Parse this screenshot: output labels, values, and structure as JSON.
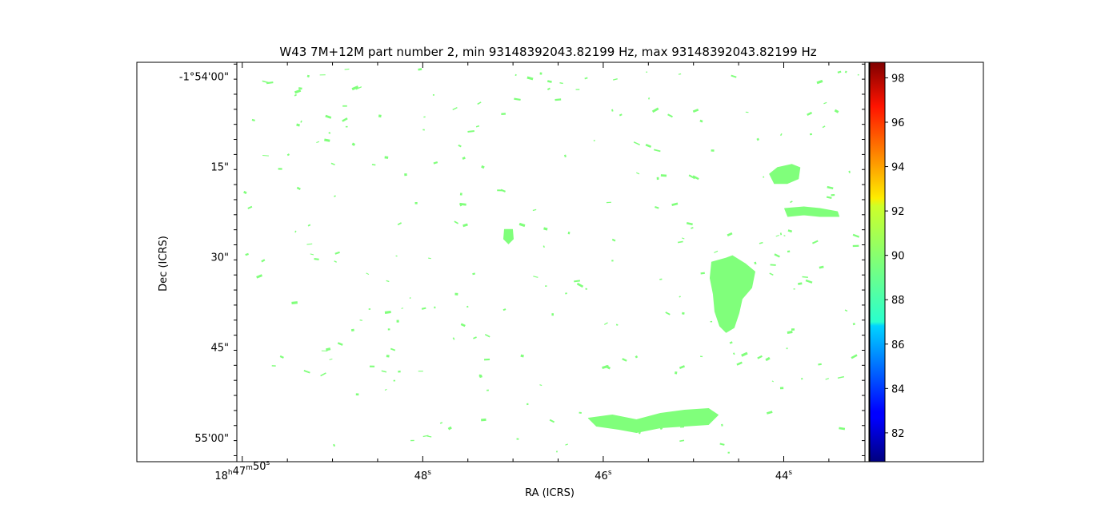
{
  "chart_data": {
    "type": "heatmap",
    "title": "W43 7M+12M part number 2, min 93148392043.82199 Hz, max 93148392043.82199 Hz",
    "xlabel": "RA (ICRS)",
    "ylabel": "Dec (ICRS)",
    "x_ticks": [
      {
        "text": "18h47m50s",
        "ra_s": 50
      },
      {
        "text": "48s",
        "ra_s": 48
      },
      {
        "text": "46s",
        "ra_s": 46
      },
      {
        "text": "44s",
        "ra_s": 44
      }
    ],
    "x_range_s": [
      50.06,
      43.1
    ],
    "y_ticks": [
      {
        "text": "-1°54'00\"",
        "dec_s": 0
      },
      {
        "text": "15\"",
        "dec_s": 15
      },
      {
        "text": "30\"",
        "dec_s": 30
      },
      {
        "text": "45\"",
        "dec_s": 45
      },
      {
        "text": "55'00\"",
        "dec_s": 60
      }
    ],
    "y_range_s": [
      -2.3,
      64
    ],
    "colorbar": {
      "colormap": "jet",
      "range": [
        80.7,
        98.7
      ],
      "ticks": [
        82,
        84,
        86,
        88,
        90,
        92,
        94,
        96,
        98
      ]
    },
    "fill_value": 89.6,
    "fill_color": "#80ff7b",
    "regions": [
      {
        "name": "source-east-elongated",
        "ra_s": 44.55,
        "dec_s": 37.5,
        "value": 89.6
      },
      {
        "name": "source-south-filament",
        "ra_s": 45.1,
        "dec_s": 57.3,
        "value": 89.6
      },
      {
        "name": "source-northeast",
        "ra_s": 43.98,
        "dec_s": 16.5,
        "value": 89.6
      },
      {
        "name": "source-east-filament",
        "ra_s": 43.6,
        "dec_s": 22.5,
        "value": 89.6
      },
      {
        "name": "source-center-small",
        "ra_s": 47.05,
        "dec_s": 26.5,
        "value": 89.6
      }
    ]
  }
}
